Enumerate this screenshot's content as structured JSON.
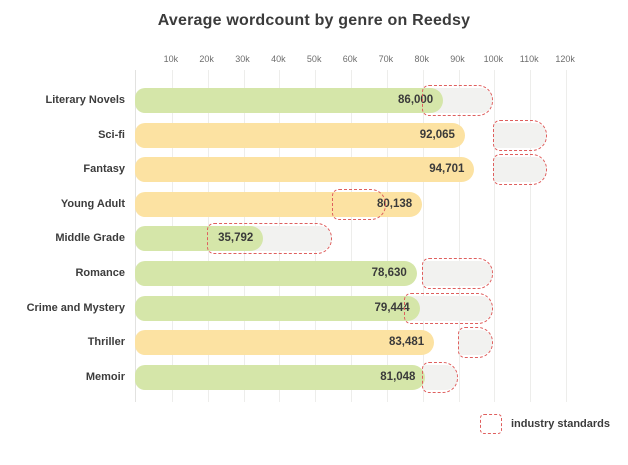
{
  "page": {
    "background": "#ffffff"
  },
  "chart_data": {
    "type": "bar",
    "orientation": "horizontal",
    "title": "Average wordcount by genre on Reedsy",
    "categories": [
      "Literary Novels",
      "Sci-fi",
      "Fantasy",
      "Young Adult",
      "Middle Grade",
      "Romance",
      "Crime and Mystery",
      "Thriller",
      "Memoir"
    ],
    "values": [
      86000,
      92065,
      94701,
      80138,
      35792,
      78630,
      79444,
      83481,
      81048
    ],
    "value_labels": [
      "86,000",
      "92,065",
      "94,701",
      "80,138",
      "35,792",
      "78,630",
      "79,444",
      "83,481",
      "81,048"
    ],
    "bar_colors": [
      "green",
      "yellow",
      "yellow",
      "yellow",
      "green",
      "green",
      "green",
      "yellow",
      "green"
    ],
    "industry_standards": [
      {
        "min": 80000,
        "max": 100000
      },
      {
        "min": 100000,
        "max": 115000
      },
      {
        "min": 100000,
        "max": 115000
      },
      {
        "min": 55000,
        "max": 70000
      },
      {
        "min": 20000,
        "max": 55000
      },
      {
        "min": 80000,
        "max": 100000
      },
      {
        "min": 75000,
        "max": 100000
      },
      {
        "min": 90000,
        "max": 100000
      },
      {
        "min": 80000,
        "max": 90000
      }
    ],
    "x_tick_labels": [
      "10k",
      "20k",
      "30k",
      "40k",
      "50k",
      "60k",
      "70k",
      "80k",
      "90k",
      "100k",
      "110k",
      "120k"
    ],
    "x_tick_values": [
      10000,
      20000,
      30000,
      40000,
      50000,
      60000,
      70000,
      80000,
      90000,
      100000,
      110000,
      120000
    ],
    "xlim": [
      0,
      125000
    ],
    "grid": true,
    "legend": {
      "label": "industry standards",
      "position": "bottom-right"
    }
  },
  "colors": {
    "green": "#d5e6a9",
    "yellow": "#fce2a2",
    "standard_fill": "#f2f2f0",
    "standard_border": "#df5f5e",
    "gridline": "#ededeb",
    "title_text": "#3b3b3b",
    "label_text": "#3c3c3c",
    "tick_text": "#6e6e6e"
  }
}
